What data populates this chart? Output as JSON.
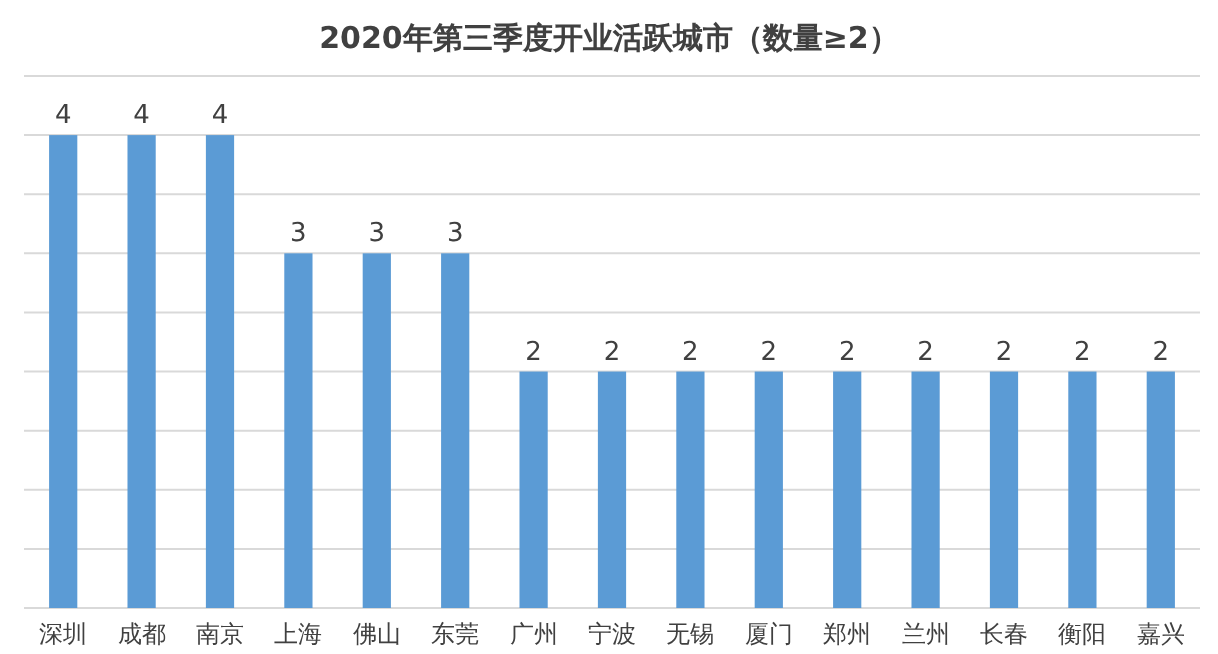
{
  "chart_data": {
    "type": "bar",
    "title": "2020年第三季度开业活跃城市（数量≥2）",
    "categories": [
      "深圳",
      "成都",
      "南京",
      "上海",
      "佛山",
      "东莞",
      "广州",
      "宁波",
      "无锡",
      "厦门",
      "郑州",
      "兰州",
      "长春",
      "衡阳",
      "嘉兴"
    ],
    "values": [
      4,
      4,
      4,
      3,
      3,
      3,
      2,
      2,
      2,
      2,
      2,
      2,
      2,
      2,
      2
    ],
    "color": "#5b9bd5",
    "data_labels": true,
    "grid": "y",
    "tick_labels": "x",
    "ylim": [
      0,
      4.5
    ],
    "yticks": [
      {
        "value": 0,
        "label": null
      },
      {
        "value": 0.5,
        "label": null
      },
      {
        "value": 1,
        "label": null
      },
      {
        "value": 1.5,
        "label": null
      },
      {
        "value": 2,
        "label": null
      },
      {
        "value": 2.5,
        "label": null
      },
      {
        "value": 3,
        "label": null
      },
      {
        "value": 3.5,
        "label": null
      },
      {
        "value": 4,
        "label": null
      },
      {
        "value": 4.5,
        "label": null
      }
    ]
  }
}
